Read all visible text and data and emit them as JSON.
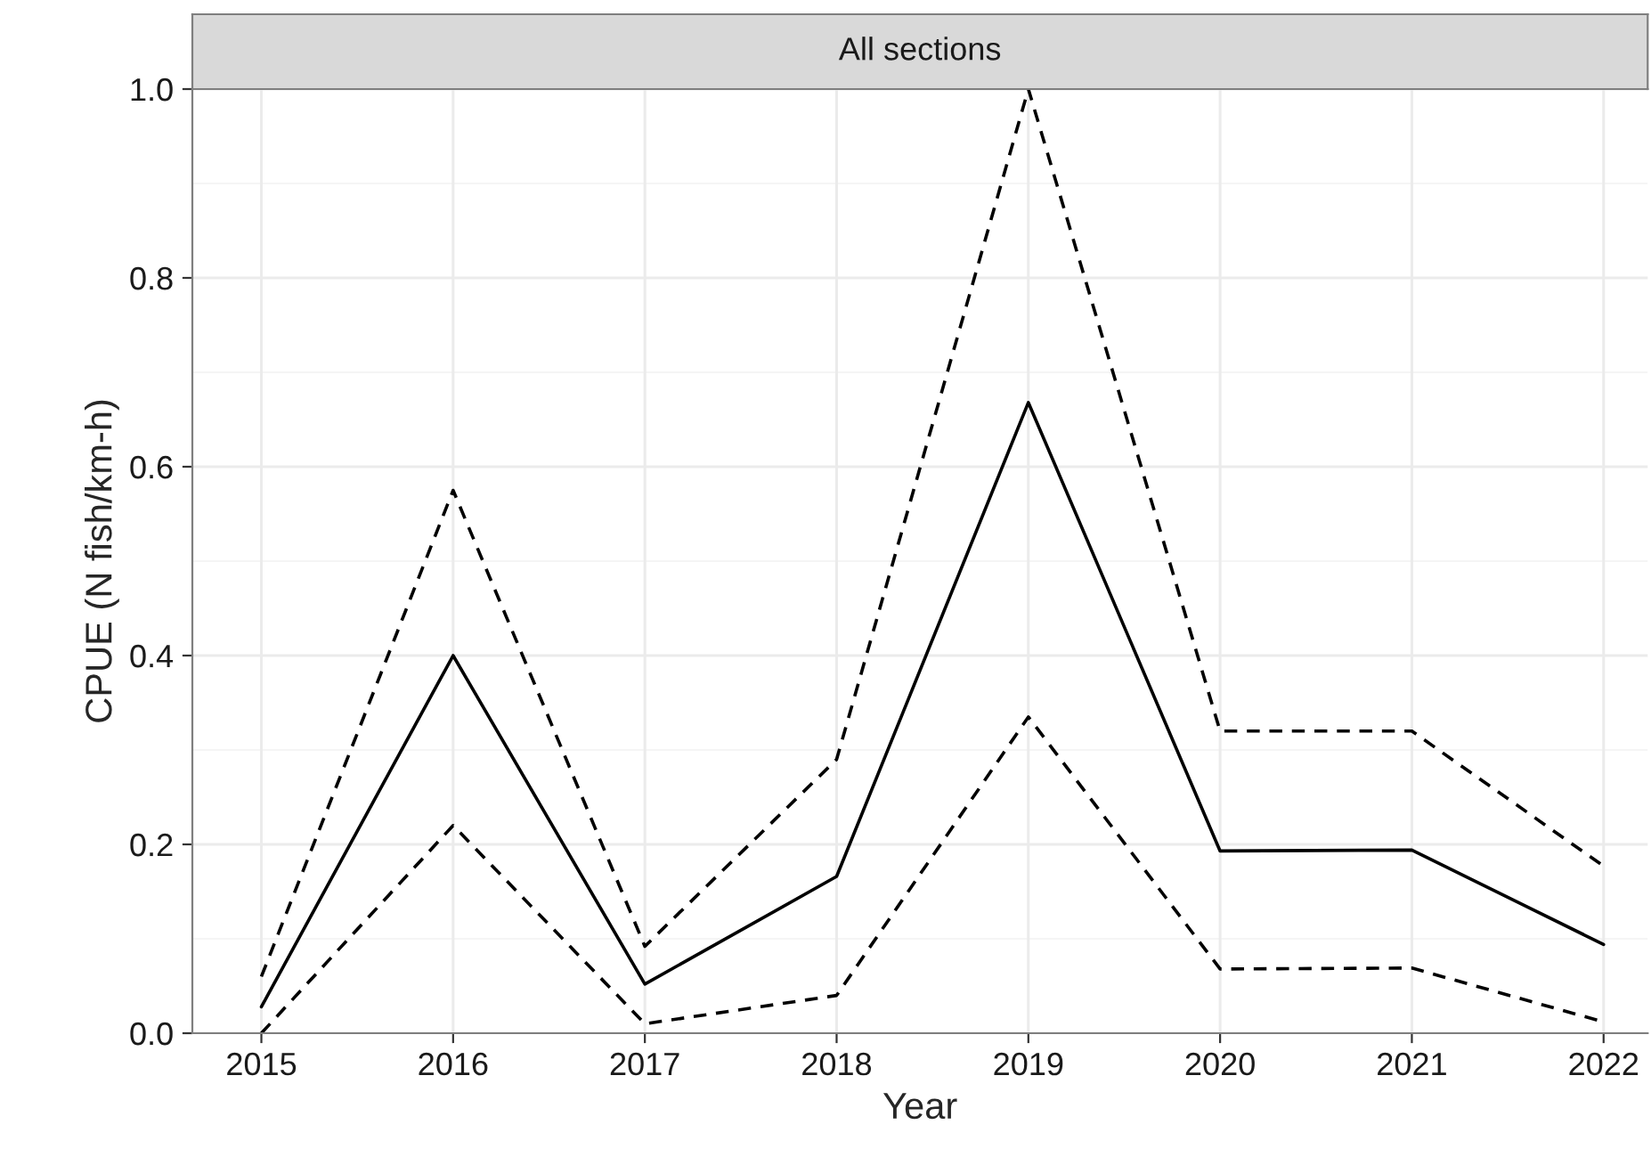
{
  "chart_data": {
    "type": "line",
    "title": "All sections",
    "xlabel": "Year",
    "ylabel": "CPUE (N fish/km-h)",
    "x": [
      2015,
      2016,
      2017,
      2018,
      2019,
      2020,
      2021,
      2022
    ],
    "series": [
      {
        "color": "#000000",
        "line_style": "solid",
        "values": [
          0.028,
          0.4,
          0.052,
          0.166,
          0.668,
          0.193,
          0.194,
          0.094
        ]
      },
      {
        "color": "#000000",
        "line_style": "dashed",
        "values": [
          0.06,
          0.575,
          0.092,
          0.29,
          1.0,
          0.32,
          0.32,
          0.177
        ]
      },
      {
        "color": "#000000",
        "line_style": "dashed",
        "values": [
          0.0,
          0.22,
          0.01,
          0.04,
          0.335,
          0.068,
          0.069,
          0.012
        ]
      }
    ],
    "xlim": [
      2014.64,
      2022.23
    ],
    "ylim": [
      0,
      1.0
    ],
    "xticks": [
      2015,
      2016,
      2017,
      2018,
      2019,
      2020,
      2021,
      2022
    ],
    "yticks": [
      {
        "value": 0,
        "label": "0.0"
      },
      {
        "value": 0.2,
        "label": "0.2"
      },
      {
        "value": 0.4,
        "label": "0.4"
      },
      {
        "value": 0.6,
        "label": "0.6"
      },
      {
        "value": 0.8,
        "label": "0.8"
      },
      {
        "value": 1.0,
        "label": "1.0"
      }
    ],
    "grid": true,
    "legend": false
  }
}
